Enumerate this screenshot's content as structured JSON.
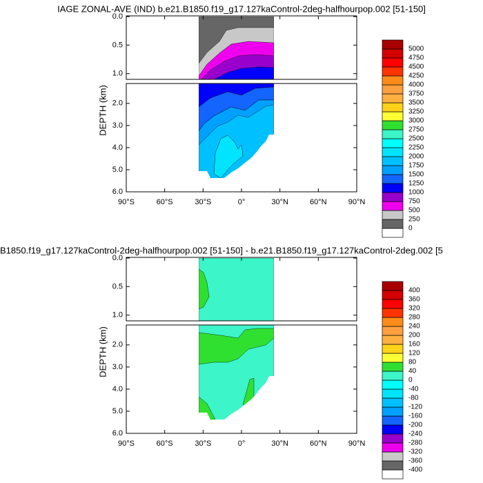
{
  "chart_data": [
    {
      "type": "contour",
      "title": "IAGE ZONAL-AVE (IND) b.e21.B1850.f19_g17.127kaControl-2deg-halfhourpop.002 [51-150]",
      "ylabel": "DEPTH (km)",
      "xlim": [
        -90,
        90
      ],
      "xticks": [
        {
          "value": -90,
          "label": "90°S"
        },
        {
          "value": -60,
          "label": "60°S"
        },
        {
          "value": -30,
          "label": "30°S"
        },
        {
          "value": 0,
          "label": "0°"
        },
        {
          "value": 30,
          "label": "30°N"
        },
        {
          "value": 60,
          "label": "60°N"
        },
        {
          "value": 90,
          "label": "90°N"
        }
      ],
      "panels": [
        {
          "ylim": [
            0,
            1.1
          ],
          "yticks": [
            {
              "value": 0,
              "label": "0.0"
            },
            0.5,
            {
              "value": 1,
              "label": "1.0"
            }
          ]
        },
        {
          "ylim": [
            1.1,
            6
          ],
          "yticks": [
            {
              "value": 2,
              "label": "2.0"
            },
            {
              "value": 3,
              "label": "3.0"
            },
            {
              "value": 4,
              "label": "4.0"
            },
            {
              "value": 5,
              "label": "5.0"
            },
            {
              "value": 6,
              "label": "6.0"
            }
          ]
        }
      ],
      "levels": [
        0,
        250,
        500,
        750,
        1000,
        1250,
        1500,
        1750,
        2000,
        2250,
        2500,
        2750,
        3000,
        3250,
        3500,
        3750,
        4000,
        4250,
        4500,
        4750,
        5000
      ],
      "colors": [
        "#ffffff",
        "#666666",
        "#c8c8c8",
        "#ee00ee",
        "#9900cc",
        "#0000ff",
        "#1464ff",
        "#00a0ff",
        "#00c0ff",
        "#00e4ff",
        "#00ffff",
        "#3cf5c8",
        "#30e030",
        "#ffff33",
        "#ffd21a",
        "#ffb040",
        "#ffa040",
        "#ff8c1a",
        "#ff3300",
        "#ff0000",
        "#d40000",
        "#a80000"
      ]
    },
    {
      "type": "contour",
      "title": "B1850.f19_g17.127kaControl-2deg-halfhourpop.002 [51-150] - b.e21.B1850.f19_g17.127kaControl-2deg.002 [5",
      "ylabel": "DEPTH (km)",
      "xlim": [
        -90,
        90
      ],
      "xticks": [
        {
          "value": -90,
          "label": "90°S"
        },
        {
          "value": -60,
          "label": "60°S"
        },
        {
          "value": -30,
          "label": "30°S"
        },
        {
          "value": 0,
          "label": "0°"
        },
        {
          "value": 30,
          "label": "30°N"
        },
        {
          "value": 60,
          "label": "60°N"
        },
        {
          "value": 90,
          "label": "90°N"
        }
      ],
      "panels": [
        {
          "ylim": [
            0,
            1.1
          ],
          "yticks": [
            {
              "value": 0,
              "label": "0.0"
            },
            0.5,
            {
              "value": 1,
              "label": "1.0"
            }
          ]
        },
        {
          "ylim": [
            1.1,
            6
          ],
          "yticks": [
            {
              "value": 2,
              "label": "2.0"
            },
            {
              "value": 3,
              "label": "3.0"
            },
            {
              "value": 4,
              "label": "4.0"
            },
            {
              "value": 5,
              "label": "5.0"
            },
            {
              "value": 6,
              "label": "6.0"
            }
          ]
        }
      ],
      "levels": [
        -400,
        -360,
        -320,
        -280,
        -240,
        -200,
        -160,
        -120,
        -80,
        -40,
        0,
        40,
        80,
        120,
        160,
        200,
        240,
        280,
        320,
        360,
        400
      ],
      "colors": [
        "#ffffff",
        "#666666",
        "#c8c8c8",
        "#ee00ee",
        "#9900cc",
        "#0000ff",
        "#1464ff",
        "#00a0ff",
        "#00c0ff",
        "#00e4ff",
        "#00ffff",
        "#3cf5c8",
        "#30e030",
        "#ffff33",
        "#ffd21a",
        "#ffb040",
        "#ffa040",
        "#ff8c1a",
        "#ff3300",
        "#ff0000",
        "#d40000",
        "#a80000"
      ]
    }
  ]
}
